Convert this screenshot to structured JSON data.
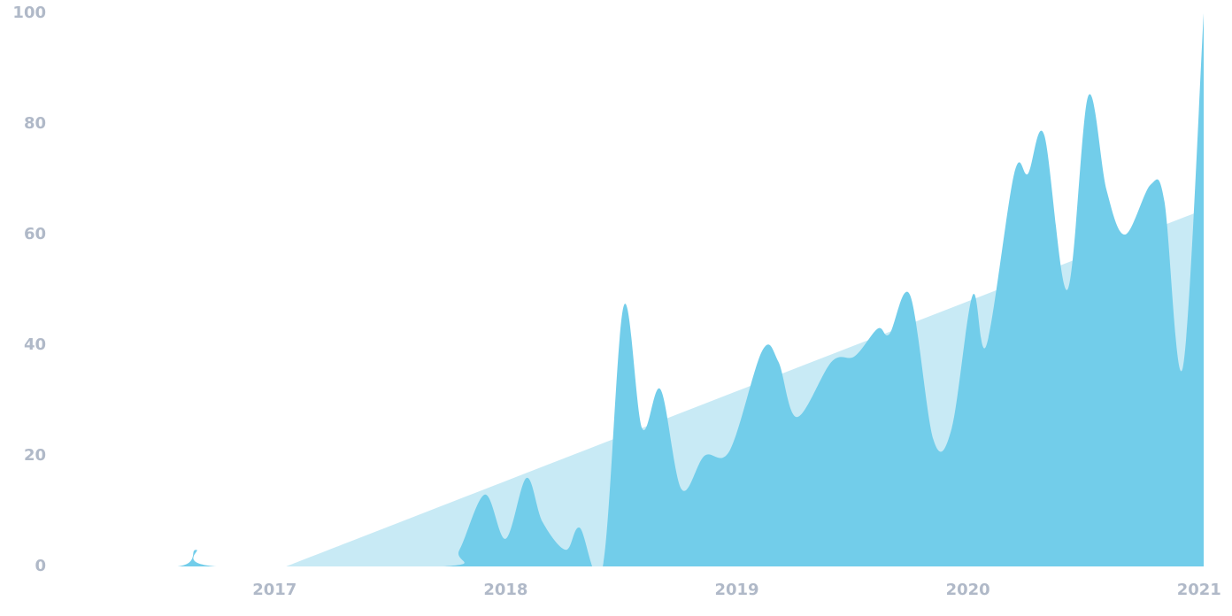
{
  "chart_data": {
    "type": "area",
    "xlim": [
      2016.08,
      2021.02
    ],
    "xticks": [
      2017,
      2018,
      2019,
      2020,
      2021
    ],
    "ylim": [
      0,
      100
    ],
    "yticks": [
      0,
      20,
      40,
      60,
      80,
      100
    ],
    "grid": false,
    "series": [
      {
        "color": "#c8eaf5",
        "x": [
          2017.05,
          2021.02
        ],
        "values": [
          0,
          64.5
        ]
      },
      {
        "color": "#72cdea",
        "x": [
          2016.08,
          2016.58,
          2016.66,
          2016.75,
          2017.73,
          2017.8,
          2017.91,
          2018.0,
          2018.09,
          2018.16,
          2018.26,
          2018.32,
          2018.42,
          2018.51,
          2018.59,
          2018.67,
          2018.76,
          2018.86,
          2018.97,
          2019.11,
          2019.18,
          2019.26,
          2019.41,
          2019.51,
          2019.61,
          2019.66,
          2019.75,
          2019.85,
          2019.93,
          2020.02,
          2020.08,
          2020.2,
          2020.26,
          2020.33,
          2020.43,
          2020.52,
          2020.6,
          2020.68,
          2020.79,
          2020.85,
          2020.93,
          2021.02
        ],
        "values": [
          0,
          0,
          3,
          0,
          0,
          3,
          13,
          5,
          16,
          8,
          3,
          7,
          0,
          47,
          25,
          32,
          14,
          20,
          21,
          39,
          37,
          27,
          37,
          38,
          43,
          42,
          49,
          23,
          25,
          49,
          40,
          71,
          71,
          78,
          50,
          85,
          68,
          60,
          69,
          66,
          36,
          100
        ]
      }
    ]
  }
}
